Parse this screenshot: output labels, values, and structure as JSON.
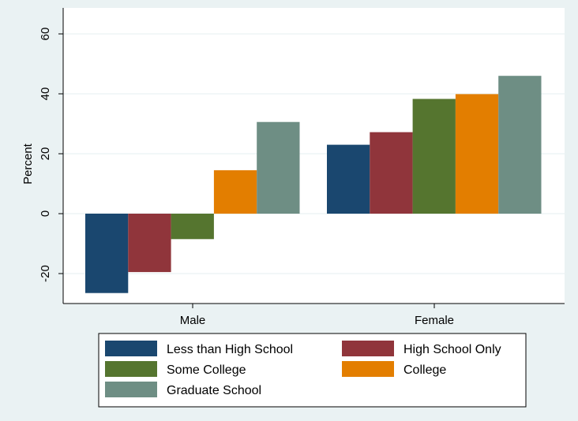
{
  "chart_data": {
    "type": "bar",
    "title": "",
    "xlabel": "",
    "ylabel": "Percent",
    "ylim": [
      -30,
      65
    ],
    "yticks": [
      -20,
      0,
      20,
      40,
      60
    ],
    "ytick_labels": [
      "-20",
      "0",
      "20",
      "40",
      "60"
    ],
    "categories": [
      "Male",
      "Female"
    ],
    "series": [
      {
        "name": "Less than High School",
        "color": "#1a476f",
        "values": [
          -26.5,
          23
        ]
      },
      {
        "name": "High School Only",
        "color": "#90353b",
        "values": [
          -19.5,
          27.2
        ]
      },
      {
        "name": "Some College",
        "color": "#55752f",
        "values": [
          -8.5,
          38.3
        ]
      },
      {
        "name": "College",
        "color": "#e37e00",
        "values": [
          14.5,
          39.9
        ]
      },
      {
        "name": "Graduate School",
        "color": "#6e8e84",
        "values": [
          30.6,
          46
        ]
      }
    ],
    "grid": true,
    "legend_position": "bottom",
    "background": {
      "outer": "#eaf2f3",
      "plot": "#ffffff",
      "grid": "#eaf2f3"
    }
  }
}
